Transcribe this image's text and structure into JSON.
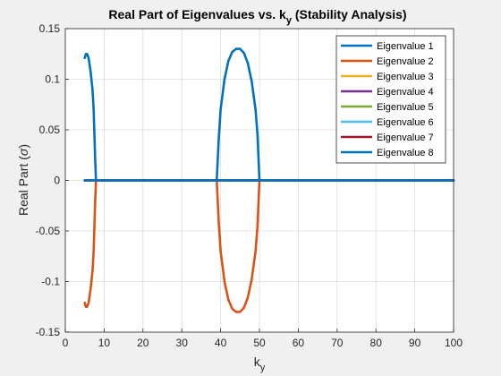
{
  "chart_data": {
    "type": "line",
    "title_main": "Real Part of Eigenvalues vs. k",
    "title_sub": "y",
    "title_tail": " (Stability Analysis)",
    "xlabel_main": "k",
    "xlabel_sub": "y",
    "ylabel_main": "Real Part (",
    "ylabel_sym": "σ",
    "ylabel_tail": ")",
    "xlim": [
      0,
      100
    ],
    "ylim": [
      -0.15,
      0.15
    ],
    "xticks": [
      0,
      10,
      20,
      30,
      40,
      50,
      60,
      70,
      80,
      90,
      100
    ],
    "yticks": [
      0.15,
      0.1,
      0.05,
      0,
      -0.05,
      -0.1,
      -0.15
    ],
    "ytick_labels": [
      "0.15",
      "0.1",
      "0.05",
      "0",
      "-0.05",
      "-0.1",
      "-0.15"
    ],
    "grid": true,
    "legend_position": "top-right",
    "series": [
      {
        "name": "Eigenvalue 1",
        "color": "#0072BD",
        "points": [
          [
            5,
            0.121
          ],
          [
            5.3,
            0.125
          ],
          [
            5.6,
            0.125
          ],
          [
            6,
            0.121
          ],
          [
            6.5,
            0.108
          ],
          [
            7,
            0.09
          ],
          [
            7.3,
            0.07
          ],
          [
            7.5,
            0.045
          ],
          [
            7.7,
            0.02
          ],
          [
            7.9,
            0
          ],
          [
            8.2,
            0
          ],
          [
            39,
            0
          ],
          [
            39.5,
            0.04
          ],
          [
            40,
            0.07
          ],
          [
            41,
            0.1
          ],
          [
            42,
            0.118
          ],
          [
            43,
            0.127
          ],
          [
            44,
            0.13
          ],
          [
            45,
            0.13
          ],
          [
            46,
            0.126
          ],
          [
            47,
            0.116
          ],
          [
            48,
            0.098
          ],
          [
            49,
            0.07
          ],
          [
            49.5,
            0.045
          ],
          [
            50,
            0
          ],
          [
            100,
            0
          ]
        ]
      },
      {
        "name": "Eigenvalue 2",
        "color": "#D95319",
        "points": [
          [
            5,
            -0.121
          ],
          [
            5.3,
            -0.125
          ],
          [
            5.6,
            -0.125
          ],
          [
            6,
            -0.121
          ],
          [
            6.5,
            -0.108
          ],
          [
            7,
            -0.09
          ],
          [
            7.3,
            -0.07
          ],
          [
            7.5,
            -0.045
          ],
          [
            7.7,
            -0.02
          ],
          [
            7.9,
            0
          ],
          [
            8.2,
            0
          ],
          [
            39,
            0
          ],
          [
            39.5,
            -0.04
          ],
          [
            40,
            -0.07
          ],
          [
            41,
            -0.1
          ],
          [
            42,
            -0.118
          ],
          [
            43,
            -0.127
          ],
          [
            44,
            -0.13
          ],
          [
            45,
            -0.13
          ],
          [
            46,
            -0.126
          ],
          [
            47,
            -0.116
          ],
          [
            48,
            -0.098
          ],
          [
            49,
            -0.07
          ],
          [
            49.5,
            -0.045
          ],
          [
            50,
            0
          ],
          [
            100,
            0
          ]
        ]
      },
      {
        "name": "Eigenvalue 3",
        "color": "#EDB120",
        "points": [
          [
            5,
            0
          ],
          [
            100,
            0
          ]
        ]
      },
      {
        "name": "Eigenvalue 4",
        "color": "#7E2F8E",
        "points": [
          [
            5,
            0
          ],
          [
            100,
            0
          ]
        ]
      },
      {
        "name": "Eigenvalue 5",
        "color": "#77AC30",
        "points": [
          [
            5,
            0
          ],
          [
            100,
            0
          ]
        ]
      },
      {
        "name": "Eigenvalue 6",
        "color": "#4DBEEE",
        "points": [
          [
            5,
            0
          ],
          [
            100,
            0
          ]
        ]
      },
      {
        "name": "Eigenvalue 7",
        "color": "#A2142F",
        "points": [
          [
            5,
            0
          ],
          [
            100,
            0
          ]
        ]
      },
      {
        "name": "Eigenvalue 8",
        "color": "#0072BD",
        "points": [
          [
            5,
            0
          ],
          [
            7.9,
            0
          ],
          [
            8.2,
            0
          ],
          [
            39,
            0
          ],
          [
            50,
            0
          ],
          [
            100,
            0
          ]
        ]
      }
    ]
  }
}
